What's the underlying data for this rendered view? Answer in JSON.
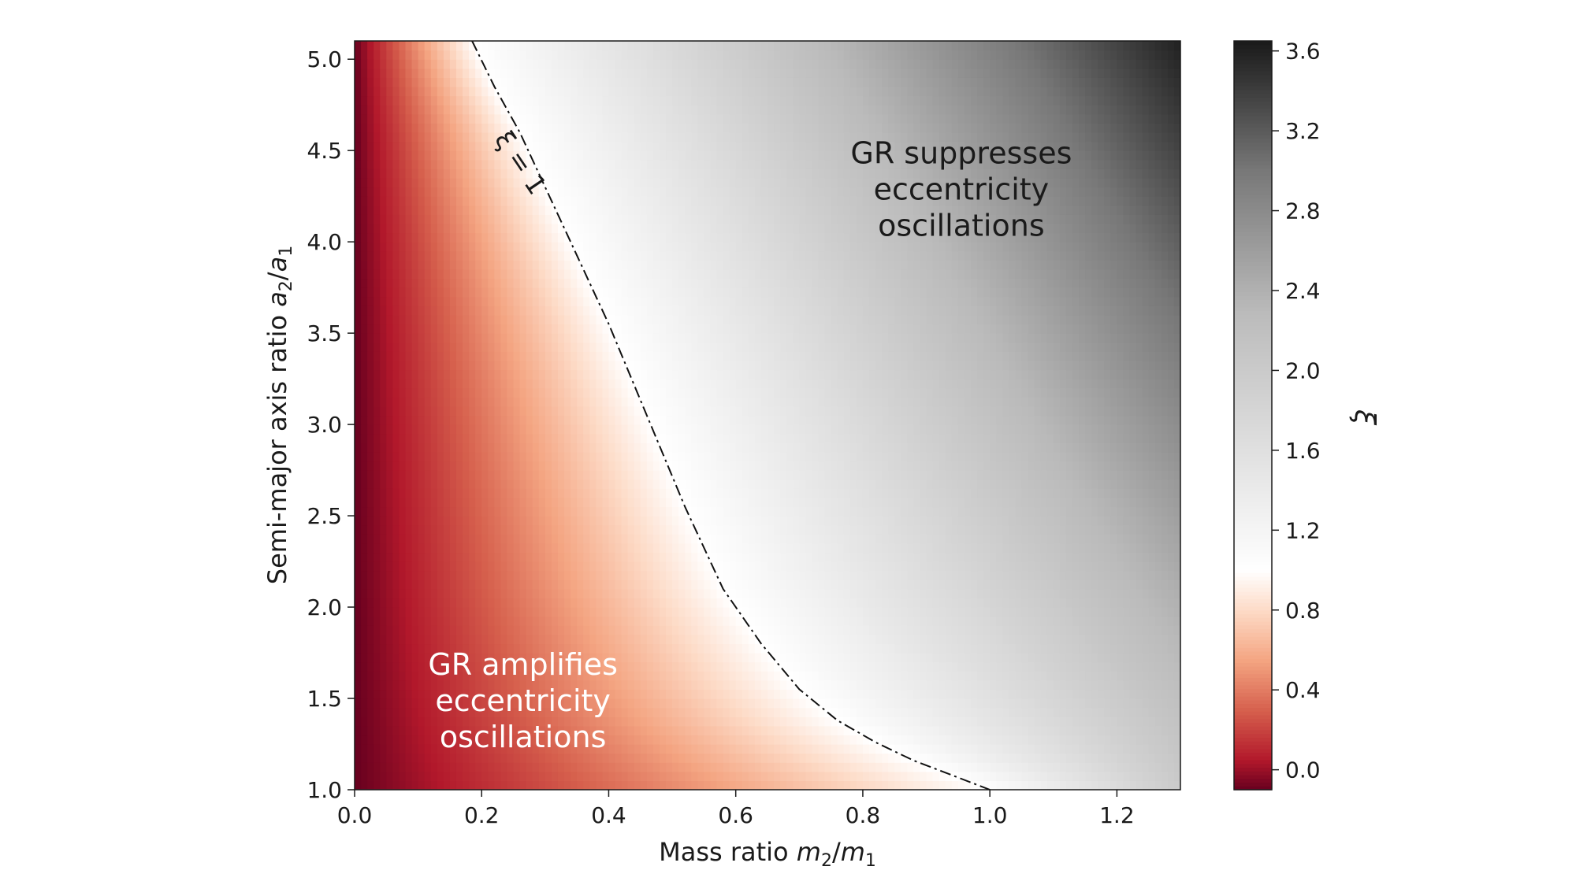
{
  "chart_data": {
    "type": "heatmap",
    "title": "",
    "xlabel": {
      "prefix": "Mass ratio ",
      "var1": "m",
      "sub1": "2",
      "slash": "/",
      "var2": "m",
      "sub2": "1"
    },
    "ylabel": {
      "prefix": "Semi-major axis ratio ",
      "var1": "a",
      "sub1": "2",
      "slash": "/",
      "var2": "a",
      "sub2": "1"
    },
    "xlim": [
      0.0,
      1.3
    ],
    "ylim": [
      1.0,
      5.1
    ],
    "xticks": [
      0.0,
      0.2,
      0.4,
      0.6,
      0.8,
      1.0,
      1.2
    ],
    "xtick_labels": [
      "0.0",
      "0.2",
      "0.4",
      "0.6",
      "0.8",
      "1.0",
      "1.2"
    ],
    "yticks": [
      1.0,
      1.5,
      2.0,
      2.5,
      3.0,
      3.5,
      4.0,
      4.5,
      5.0
    ],
    "ytick_labels": [
      "1.0",
      "1.5",
      "2.0",
      "2.5",
      "3.0",
      "3.5",
      "4.0",
      "4.5",
      "5.0"
    ],
    "colorbar": {
      "label": "ξ",
      "range": [
        -0.1,
        3.65
      ],
      "ticks": [
        0.0,
        0.4,
        0.8,
        1.2,
        1.6,
        2.0,
        2.4,
        2.8,
        3.2,
        3.6
      ],
      "tick_labels": [
        "0.0",
        "0.4",
        "0.8",
        "1.2",
        "1.6",
        "2.0",
        "2.4",
        "2.8",
        "3.2",
        "3.6"
      ]
    },
    "contour": {
      "label": "ξ = 1",
      "level": 1,
      "points": [
        [
          0.185,
          5.1
        ],
        [
          0.22,
          4.85
        ],
        [
          0.26,
          4.6
        ],
        [
          0.3,
          4.3
        ],
        [
          0.34,
          4.0
        ],
        [
          0.4,
          3.55
        ],
        [
          0.46,
          3.05
        ],
        [
          0.52,
          2.55
        ],
        [
          0.58,
          2.1
        ],
        [
          0.64,
          1.8
        ],
        [
          0.7,
          1.55
        ],
        [
          0.76,
          1.38
        ],
        [
          0.82,
          1.26
        ],
        [
          0.88,
          1.16
        ],
        [
          0.94,
          1.08
        ],
        [
          1.0,
          1.0
        ]
      ]
    },
    "annotations": [
      {
        "lines": [
          "GR suppresses",
          "eccentricity",
          "oscillations"
        ],
        "x": 0.955,
        "y": 4.43,
        "color": "#1a1a1a"
      },
      {
        "lines": [
          "GR amplifies",
          "eccentricity",
          "oscillations"
        ],
        "x": 0.265,
        "y": 1.63,
        "color": "#ffffff"
      }
    ],
    "colors": {
      "low": "#67001f",
      "mid": "#ffffff",
      "high": "#1a1a1a"
    }
  }
}
